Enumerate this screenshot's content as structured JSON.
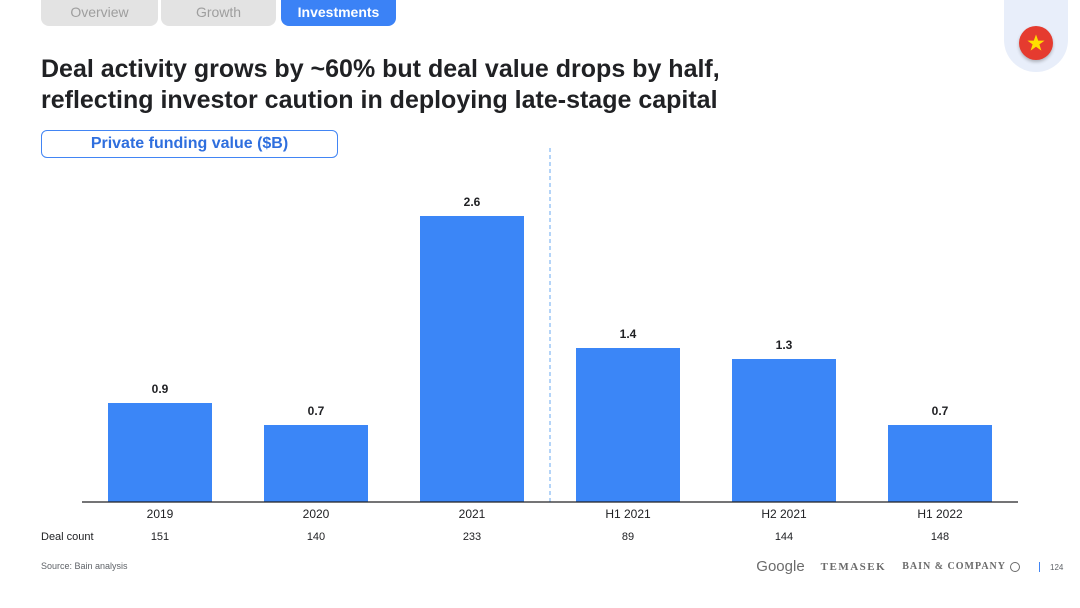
{
  "tabs": [
    {
      "label": "Overview",
      "active": false
    },
    {
      "label": "Growth",
      "active": false
    },
    {
      "label": "Investments",
      "active": true
    }
  ],
  "header": {
    "title_line1": "Deal activity grows by ~60% but deal value drops by half,",
    "title_line2": "reflecting investor caution in deploying late-stage capital",
    "metric_label": "Private funding value ($B)",
    "flag_icon": "vietnam-flag-icon"
  },
  "chart_data": {
    "type": "bar",
    "categories": [
      "2019",
      "2020",
      "2021",
      "H1 2021",
      "H2 2021",
      "H1 2022"
    ],
    "values": [
      0.9,
      0.7,
      2.6,
      1.4,
      1.3,
      0.7
    ],
    "value_labels": [
      "0.9",
      "0.7",
      "2.6",
      "1.4",
      "1.3",
      "0.7"
    ],
    "ylim": [
      0,
      2.6
    ],
    "bar_color": "#3b86f7",
    "divider_after_index": 2,
    "table_row_label": "Deal count",
    "deal_counts": [
      "151",
      "140",
      "233",
      "89",
      "144",
      "148"
    ]
  },
  "footer": {
    "source": "Source: Bain analysis",
    "logos": [
      "Google",
      "TEMASEK",
      "BAIN & COMPANY"
    ],
    "page_number": "124"
  }
}
